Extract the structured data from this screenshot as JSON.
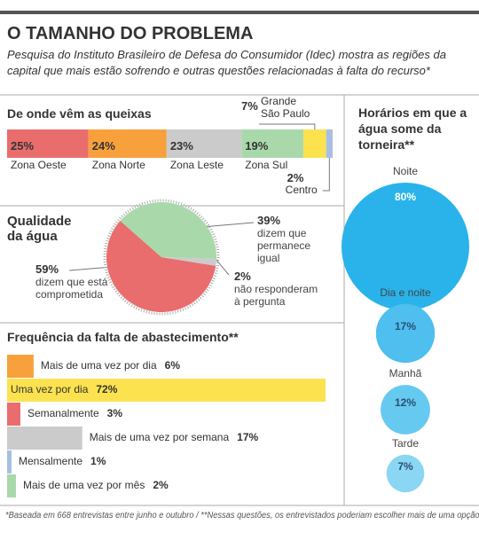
{
  "title": "O TAMANHO DO PROBLEMA",
  "subtitle": "Pesquisa do Instituto Brasileiro de Defesa do Consumidor (Idec) mostra as regiões da capital que mais estão sofrendo e outras questões relacionadas à falta do recurso*",
  "footnote": "*Baseada em 668 entrevistas entre junho e outubro / **Nessas questões, os entrevistados poderiam escolher mais de uma opção",
  "chart_data": [
    {
      "type": "stacked-bar",
      "title": "De onde vêm as queixas",
      "categories": [
        "Zona Oeste",
        "Zona Norte",
        "Zona Leste",
        "Zona Sul",
        "Grande São Paulo",
        "Centro"
      ],
      "values": [
        25,
        24,
        23,
        19,
        7,
        2
      ],
      "value_labels": [
        "25%",
        "24%",
        "23%",
        "19%",
        "7%",
        "2%"
      ],
      "colors": [
        "#e96d6d",
        "#f8a13c",
        "#cbcbcb",
        "#a9d9ab",
        "#fce24f",
        "#a6bfe3"
      ]
    },
    {
      "type": "pie",
      "title": "Qualidade da água",
      "categories": [
        "dizem que está comprometida",
        "dizem que permanece igual",
        "não responderam à pergunta"
      ],
      "values": [
        59,
        39,
        2
      ],
      "value_labels": [
        "59%",
        "39%",
        "2%"
      ],
      "colors": [
        "#e96d6d",
        "#a9d9ab",
        "#cbcbcb"
      ]
    },
    {
      "type": "hbar",
      "title": "Frequência da falta de abastecimento**",
      "categories": [
        "Mais de uma vez por dia",
        "Uma vez por dia",
        "Semanalmente",
        "Mais de uma vez por semana",
        "Mensalmente",
        "Mais de uma vez por mês"
      ],
      "values": [
        6,
        72,
        3,
        17,
        1,
        2
      ],
      "value_labels": [
        "6%",
        "72%",
        "3%",
        "17%",
        "1%",
        "2%"
      ],
      "colors": [
        "#f8a13c",
        "#fce24f",
        "#e96d6d",
        "#cbcbcb",
        "#a6bfe3",
        "#a9d9ab"
      ]
    },
    {
      "type": "bubble",
      "title": "Horários em que a água some da torneira**",
      "categories": [
        "Noite",
        "Dia e noite",
        "Manhã",
        "Tarde"
      ],
      "values": [
        80,
        17,
        12,
        7
      ],
      "value_labels": [
        "80%",
        "17%",
        "12%",
        "7%"
      ],
      "colors": [
        "#29b3ea",
        "#4ebfee",
        "#66c9f0",
        "#8ad6f3"
      ]
    }
  ]
}
